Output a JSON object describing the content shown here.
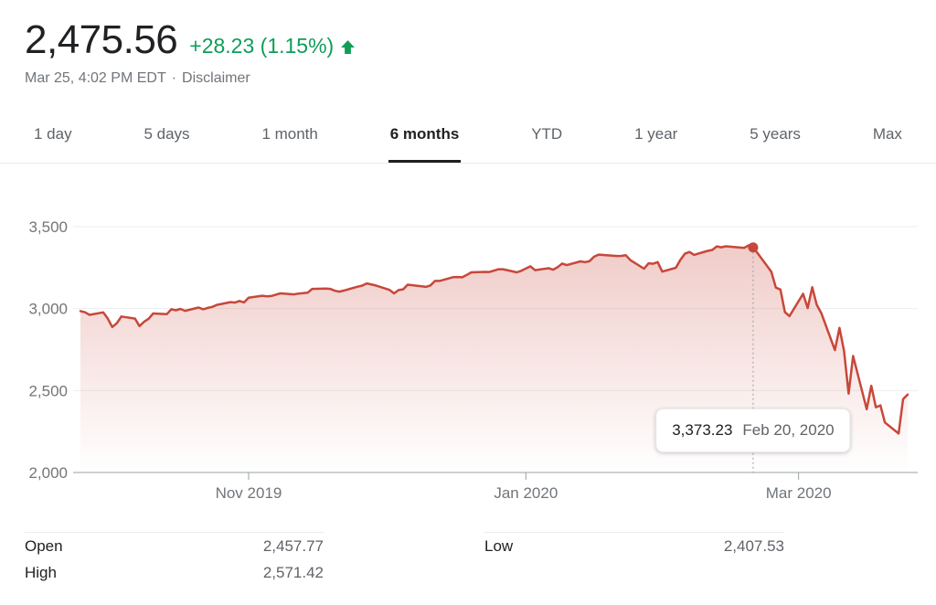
{
  "header": {
    "price": "2,475.56",
    "change": "+28.23 (1.15%)",
    "trend": "up",
    "change_color": "#0f9d58",
    "timestamp": "Mar 25, 4:02 PM EDT",
    "separator": "·",
    "disclaimer_label": "Disclaimer"
  },
  "tabs": {
    "active_index": 3,
    "items": [
      {
        "label": "1 day"
      },
      {
        "label": "5 days"
      },
      {
        "label": "1 month"
      },
      {
        "label": "6 months"
      },
      {
        "label": "YTD"
      },
      {
        "label": "1 year"
      },
      {
        "label": "5 years"
      },
      {
        "label": "Max"
      }
    ]
  },
  "chart_data": {
    "type": "line",
    "x_unit": "days offset from chart start (0 = Sep 25 2019, 182 = Mar 25 2020)",
    "xlim": [
      0,
      182
    ],
    "ylim": [
      2000,
      3500
    ],
    "grid": true,
    "legend": "none",
    "line_color": "#c8473a",
    "area_fill_color": "#c8473a",
    "axis_color": "#9aa0a6",
    "grid_color": "#eceef0",
    "label_color": "#70757a",
    "y_tick_color": "#757575",
    "y_ticks": [
      {
        "label": "3,500",
        "value": 3500
      },
      {
        "label": "3,000",
        "value": 3000
      },
      {
        "label": "2,500",
        "value": 2500
      },
      {
        "label": "2,000",
        "value": 2000
      }
    ],
    "x_ticks": [
      {
        "label": "Nov 2019",
        "day": 37
      },
      {
        "label": "Jan 2020",
        "day": 98
      },
      {
        "label": "Mar 2020",
        "day": 158
      }
    ],
    "highlight": {
      "day": 148,
      "value": 3373.23,
      "value_label": "3,373.23",
      "date_label": "Feb 20, 2020"
    },
    "series": [
      {
        "name": "index-price",
        "points": [
          [
            0,
            2984.87
          ],
          [
            1,
            2977.62
          ],
          [
            2,
            2961.79
          ],
          [
            5,
            2976.74
          ],
          [
            6,
            2940.25
          ],
          [
            7,
            2887.61
          ],
          [
            8,
            2910.63
          ],
          [
            9,
            2952.01
          ],
          [
            12,
            2938.79
          ],
          [
            13,
            2893.06
          ],
          [
            14,
            2919.4
          ],
          [
            15,
            2938.13
          ],
          [
            16,
            2970.27
          ],
          [
            19,
            2966.15
          ],
          [
            20,
            2995.68
          ],
          [
            21,
            2989.69
          ],
          [
            22,
            2997.95
          ],
          [
            23,
            2986.2
          ],
          [
            26,
            3006.72
          ],
          [
            27,
            2995.99
          ],
          [
            28,
            3004.52
          ],
          [
            29,
            3010.29
          ],
          [
            30,
            3022.55
          ],
          [
            33,
            3039.42
          ],
          [
            34,
            3036.89
          ],
          [
            35,
            3046.77
          ],
          [
            36,
            3037.56
          ],
          [
            37,
            3066.91
          ],
          [
            40,
            3078.27
          ],
          [
            41,
            3074.62
          ],
          [
            42,
            3076.78
          ],
          [
            43,
            3085.18
          ],
          [
            44,
            3093.08
          ],
          [
            47,
            3087.01
          ],
          [
            48,
            3091.84
          ],
          [
            49,
            3094.04
          ],
          [
            50,
            3096.63
          ],
          [
            51,
            3120.46
          ],
          [
            54,
            3122.03
          ],
          [
            55,
            3120.18
          ],
          [
            56,
            3108.46
          ],
          [
            57,
            3103.54
          ],
          [
            58,
            3110.29
          ],
          [
            61,
            3133.64
          ],
          [
            62,
            3140.52
          ],
          [
            63,
            3153.63
          ],
          [
            65,
            3140.98
          ],
          [
            68,
            3113.87
          ],
          [
            69,
            3093.2
          ],
          [
            70,
            3112.76
          ],
          [
            71,
            3117.43
          ],
          [
            72,
            3145.91
          ],
          [
            75,
            3135.96
          ],
          [
            76,
            3132.52
          ],
          [
            77,
            3141.63
          ],
          [
            78,
            3168.57
          ],
          [
            79,
            3168.8
          ],
          [
            82,
            3191.45
          ],
          [
            83,
            3192.52
          ],
          [
            84,
            3191.14
          ],
          [
            85,
            3205.37
          ],
          [
            86,
            3221.22
          ],
          [
            89,
            3224.01
          ],
          [
            90,
            3223.38
          ],
          [
            92,
            3239.91
          ],
          [
            93,
            3240.02
          ],
          [
            96,
            3221.29
          ],
          [
            97,
            3230.78
          ],
          [
            99,
            3257.85
          ],
          [
            100,
            3234.85
          ],
          [
            103,
            3246.28
          ],
          [
            104,
            3237.18
          ],
          [
            105,
            3253.05
          ],
          [
            106,
            3274.7
          ],
          [
            107,
            3265.35
          ],
          [
            110,
            3288.13
          ],
          [
            111,
            3283.15
          ],
          [
            112,
            3289.29
          ],
          [
            113,
            3316.81
          ],
          [
            114,
            3329.62
          ],
          [
            118,
            3320.79
          ],
          [
            119,
            3321.75
          ],
          [
            120,
            3325.54
          ],
          [
            121,
            3295.47
          ],
          [
            124,
            3243.63
          ],
          [
            125,
            3276.24
          ],
          [
            126,
            3273.4
          ],
          [
            127,
            3283.66
          ],
          [
            128,
            3225.52
          ],
          [
            131,
            3248.92
          ],
          [
            132,
            3297.59
          ],
          [
            133,
            3334.69
          ],
          [
            134,
            3345.78
          ],
          [
            135,
            3327.71
          ],
          [
            138,
            3352.09
          ],
          [
            139,
            3357.75
          ],
          [
            140,
            3379.45
          ],
          [
            141,
            3373.94
          ],
          [
            142,
            3380.16
          ],
          [
            146,
            3370.29
          ],
          [
            147,
            3386.15
          ],
          [
            148,
            3373.23
          ],
          [
            149,
            3337.75
          ],
          [
            152,
            3225.89
          ],
          [
            153,
            3128.21
          ],
          [
            154,
            3116.39
          ],
          [
            155,
            2978.76
          ],
          [
            156,
            2954.22
          ],
          [
            159,
            3090.23
          ],
          [
            160,
            3003.37
          ],
          [
            161,
            3130.12
          ],
          [
            162,
            3023.94
          ],
          [
            163,
            2972.37
          ],
          [
            166,
            2746.56
          ],
          [
            167,
            2882.23
          ],
          [
            168,
            2741.38
          ],
          [
            169,
            2480.64
          ],
          [
            170,
            2711.02
          ],
          [
            173,
            2386.13
          ],
          [
            174,
            2529.19
          ],
          [
            175,
            2398.1
          ],
          [
            176,
            2409.39
          ],
          [
            177,
            2304.92
          ],
          [
            180,
            2237.4
          ],
          [
            181,
            2447.33
          ],
          [
            182,
            2475.56
          ]
        ]
      }
    ]
  },
  "stats": {
    "left": [
      {
        "label": "Open",
        "value": "2,457.77"
      },
      {
        "label": "High",
        "value": "2,571.42"
      }
    ],
    "right": [
      {
        "label": "Low",
        "value": "2,407.53"
      }
    ]
  }
}
